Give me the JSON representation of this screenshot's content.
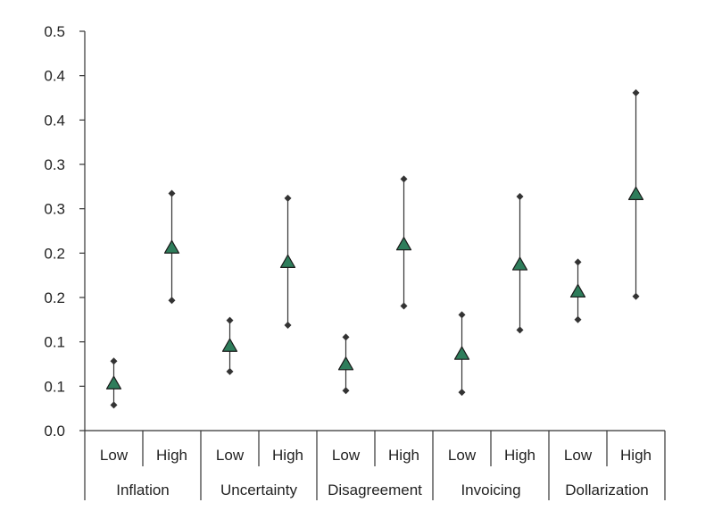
{
  "chart_data": {
    "type": "scatter",
    "title": "",
    "xlabel": "",
    "ylabel": "",
    "ylim": [
      0,
      0.5
    ],
    "y_tick_labels": [
      "0.0",
      "0.1",
      "0.1",
      "0.2",
      "0.2",
      "0.3",
      "0.3",
      "0.4",
      "0.4",
      "0.5"
    ],
    "groups": [
      "Inflation",
      "Uncertainty",
      "Disagreement",
      "Invoicing",
      "Dollarization"
    ],
    "subgroups": [
      "Low",
      "High"
    ],
    "points": [
      {
        "group": "Inflation",
        "level": "Low",
        "estimate": 0.059,
        "lower": 0.032,
        "upper": 0.087
      },
      {
        "group": "Inflation",
        "level": "High",
        "estimate": 0.229,
        "lower": 0.163,
        "upper": 0.297
      },
      {
        "group": "Uncertainty",
        "level": "Low",
        "estimate": 0.106,
        "lower": 0.074,
        "upper": 0.138
      },
      {
        "group": "Uncertainty",
        "level": "High",
        "estimate": 0.211,
        "lower": 0.132,
        "upper": 0.291
      },
      {
        "group": "Disagreement",
        "level": "Low",
        "estimate": 0.083,
        "lower": 0.05,
        "upper": 0.117
      },
      {
        "group": "Disagreement",
        "level": "High",
        "estimate": 0.233,
        "lower": 0.156,
        "upper": 0.315
      },
      {
        "group": "Invoicing",
        "level": "Low",
        "estimate": 0.096,
        "lower": 0.048,
        "upper": 0.145
      },
      {
        "group": "Invoicing",
        "level": "High",
        "estimate": 0.208,
        "lower": 0.126,
        "upper": 0.293
      },
      {
        "group": "Dollarization",
        "level": "Low",
        "estimate": 0.174,
        "lower": 0.139,
        "upper": 0.211
      },
      {
        "group": "Dollarization",
        "level": "High",
        "estimate": 0.296,
        "lower": 0.168,
        "upper": 0.423
      }
    ],
    "colors": {
      "marker_fill": "#2e7d5b",
      "marker_stroke": "#1a1a1a",
      "whisker": "#333333",
      "bound_marker": "#333333",
      "axis": "#333333"
    }
  }
}
